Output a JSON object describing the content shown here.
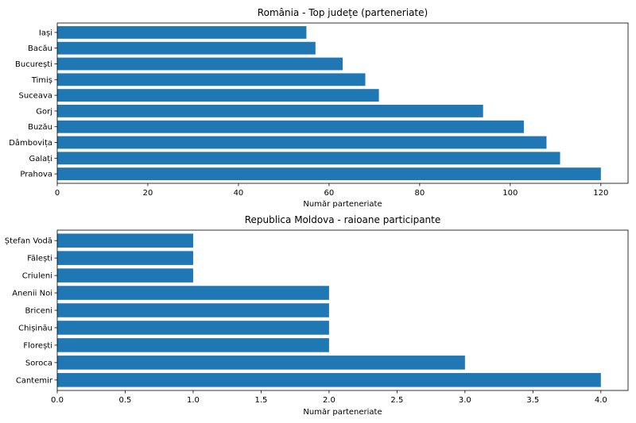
{
  "chart_data": [
    {
      "type": "bar",
      "orientation": "horizontal",
      "title": "România - Top județe (parteneriate)",
      "xlabel": "Număr parteneriate",
      "ylabel": "",
      "categories": [
        "Prahova",
        "Galați",
        "Dâmbovița",
        "Buzău",
        "Gorj",
        "Suceava",
        "Timiș",
        "București",
        "Bacău",
        "Iași"
      ],
      "values": [
        120,
        111,
        108,
        103,
        94,
        71,
        68,
        63,
        57,
        55
      ],
      "xlim": [
        0,
        126
      ],
      "xticks": [
        0,
        20,
        40,
        60,
        80,
        100,
        120
      ],
      "xtick_labels": [
        "0",
        "20",
        "40",
        "60",
        "80",
        "100",
        "120"
      ],
      "grid": false,
      "bar_color": "#1f77b4"
    },
    {
      "type": "bar",
      "orientation": "horizontal",
      "title": "Republica Moldova - raioane participante",
      "xlabel": "Număr parteneriate",
      "ylabel": "",
      "categories": [
        "Cantemir",
        "Soroca",
        "Florești",
        "Chișinău",
        "Briceni",
        "Anenii Noi",
        "Criuleni",
        "Fălești",
        "Ștefan Vodă"
      ],
      "values": [
        4,
        3,
        2,
        2,
        2,
        2,
        1,
        1,
        1
      ],
      "xlim": [
        0,
        4.2
      ],
      "xticks": [
        0,
        0.5,
        1,
        1.5,
        2,
        2.5,
        3,
        3.5,
        4
      ],
      "xtick_labels": [
        "0.0",
        "0.5",
        "1.0",
        "1.5",
        "2.0",
        "2.5",
        "3.0",
        "3.5",
        "4.0"
      ],
      "grid": false,
      "bar_color": "#1f77b4"
    }
  ]
}
